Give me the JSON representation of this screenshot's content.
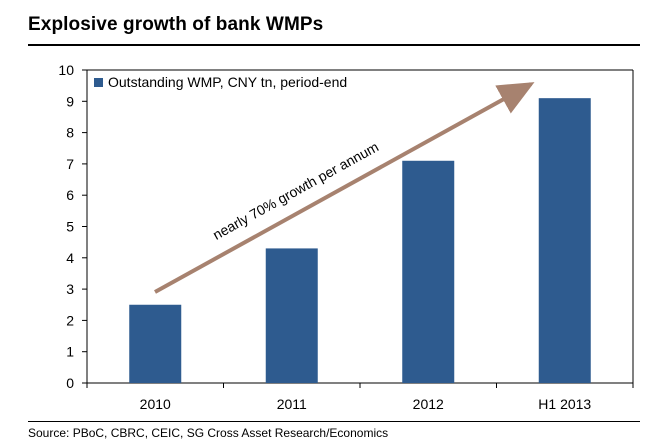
{
  "header": {
    "title": "Explosive growth of bank WMPs"
  },
  "footer": {
    "source": "Source: PBoC, CBRC, CEIC, SG Cross Asset Research/Economics"
  },
  "chart_data": {
    "type": "bar",
    "title": "Explosive growth of bank WMPs",
    "categories": [
      "2010",
      "2011",
      "2012",
      "H1 2013"
    ],
    "series": [
      {
        "name": "Outstanding WMP, CNY tn, period-end",
        "values": [
          2.5,
          4.3,
          7.1,
          9.1
        ]
      }
    ],
    "ylim": [
      0,
      10
    ],
    "yticks": [
      0,
      1,
      2,
      3,
      4,
      5,
      6,
      7,
      8,
      9,
      10
    ],
    "grid": false,
    "legend": "top-left",
    "colors": {
      "bar": "#2e5b8f",
      "arrow": "#a7826f"
    },
    "annotation": {
      "text": "nearly 70% growth per annum",
      "arrow_from_category": "2010",
      "arrow_to_category": "H1 2013"
    }
  }
}
